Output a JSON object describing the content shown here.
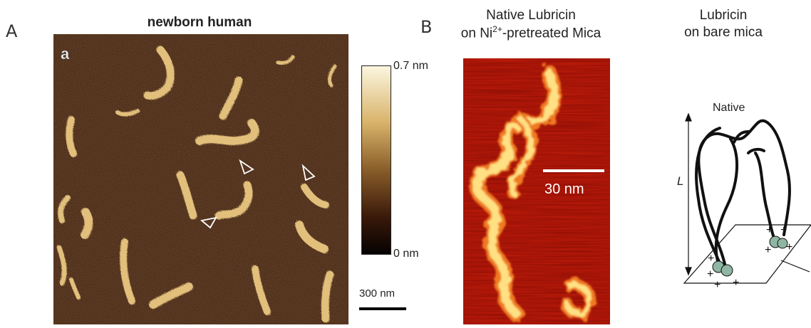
{
  "panel_a": {
    "letter": "A",
    "title": "newborn human",
    "inset_letter": "a",
    "colorbar": {
      "max_label": "0.7 nm",
      "min_label": "0 nm"
    },
    "scale_bar": "300 nm",
    "colors": {
      "background": "#3a1e0e",
      "strand": "#e2c07c",
      "bar_top": "#fbf6df",
      "bar_mid": "#8a5e2a",
      "bar_bottom": "#050202"
    }
  },
  "panel_b": {
    "letter": "B",
    "title_line1": "Native Lubricin",
    "title_line2_pre": "on Ni",
    "title_line2_sup": "2+",
    "title_line2_post": "-pretreated Mica",
    "scale_bar": "30 nm",
    "colors": {
      "background": "#c81e0a",
      "strand": "#ffe082"
    }
  },
  "panel_c": {
    "title_line1": "Lubricin",
    "title_line2": "on bare mica",
    "label_native": "Native",
    "label_L": "L",
    "charges": "+",
    "colors": {
      "line": "#111111",
      "bead": "#8fb5a3"
    }
  }
}
